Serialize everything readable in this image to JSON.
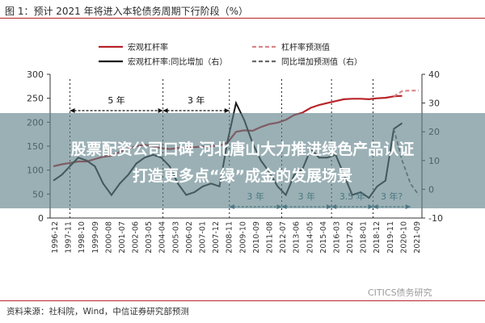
{
  "figure_title": "图 1：预计 2021 年将进入本轮债务周期下行阶段（%）",
  "source": "资料来源：社科院，Wind，中信证券研究部预测",
  "watermark": "CITICS债务研究",
  "banner": {
    "line1": "股票配资公司口碑 河北唐山大力推进绿色产品认证",
    "line2": "打造更多点“绿”成金的发展场景"
  },
  "chart_data": {
    "type": "line",
    "legend": [
      "宏观杠杆率",
      "杠杆率预测值",
      "宏观杠杆率:同比增加（右）",
      "同比增加预测值（右）"
    ],
    "legend_position": "top",
    "y_left": {
      "range": [
        0,
        300
      ],
      "ticks": [
        "300",
        "250",
        "200",
        "150",
        "100",
        "50",
        "0"
      ]
    },
    "y_right": {
      "range": [
        -10,
        40
      ],
      "ticks": [
        "40",
        "30",
        "20",
        "10",
        "0",
        "-10"
      ]
    },
    "x_labels": [
      "1996-12",
      "1997-11",
      "1998-10",
      "1999-09",
      "2000-08",
      "2001-07",
      "2002-06",
      "2003-05",
      "2004-04",
      "2005-03",
      "2006-02",
      "2007-01",
      "2007-12",
      "2008-11",
      "2009-10",
      "2010-09",
      "2011-08",
      "2012-07",
      "2013-06",
      "2014-05",
      "2015-04",
      "2016-03",
      "2017-02",
      "2018-01",
      "2018-12",
      "2019-11",
      "2020-10",
      "2021-09"
    ],
    "colors": {
      "leverage": "#b8242a",
      "leverage_forecast": "#d9868a",
      "yoy": "#1a1a1a",
      "yoy_forecast": "#6a6a6a",
      "cycle_arrow": "#2e6b73"
    },
    "series": [
      {
        "name": "宏观杠杆率",
        "axis": "left",
        "values": [
          108,
          112,
          115,
          118,
          118,
          123,
          128,
          130,
          138,
          145,
          150,
          153,
          150,
          146,
          144,
          146,
          147,
          148,
          149,
          150,
          151,
          158,
          180,
          183,
          182,
          190,
          196,
          199,
          205,
          215,
          220,
          230,
          236,
          240,
          244,
          248,
          249,
          249,
          248,
          250,
          251,
          254,
          255
        ]
      },
      {
        "name": "杠杆率预测值",
        "axis": "left",
        "values": [
          null,
          null,
          null,
          null,
          null,
          null,
          null,
          null,
          null,
          null,
          null,
          null,
          null,
          null,
          null,
          null,
          null,
          null,
          null,
          null,
          null,
          null,
          null,
          null,
          null,
          null,
          null,
          null,
          null,
          null,
          null,
          null,
          null,
          null,
          null,
          null,
          null,
          null,
          null,
          null,
          null,
          254,
          265,
          266,
          266
        ]
      },
      {
        "name": "宏观杠杆率:同比增加（右）",
        "axis": "right",
        "values": [
          3,
          5,
          8,
          11,
          10,
          8,
          2,
          -2,
          2,
          5,
          9,
          11,
          12,
          11,
          8,
          2,
          -2,
          -1,
          1,
          2,
          1,
          17,
          30,
          24,
          16,
          10,
          6,
          1,
          -2,
          5,
          7,
          14,
          11,
          11,
          12,
          5,
          -2,
          -1,
          -3,
          1,
          3,
          21,
          23
        ]
      },
      {
        "name": "同比增加预测值（右）",
        "axis": "right",
        "values": [
          null,
          null,
          null,
          null,
          null,
          null,
          null,
          null,
          null,
          null,
          null,
          null,
          null,
          null,
          null,
          null,
          null,
          null,
          null,
          null,
          null,
          null,
          null,
          null,
          null,
          null,
          null,
          null,
          null,
          null,
          null,
          null,
          null,
          null,
          null,
          null,
          null,
          null,
          null,
          null,
          null,
          21,
          10,
          2,
          -2
        ]
      }
    ],
    "cycle_annotations_top": [
      "5 年",
      "3 年"
    ],
    "cycle_annotations_bottom": [
      "3 年",
      "3 年",
      "3.5 年",
      "3 年?"
    ]
  }
}
